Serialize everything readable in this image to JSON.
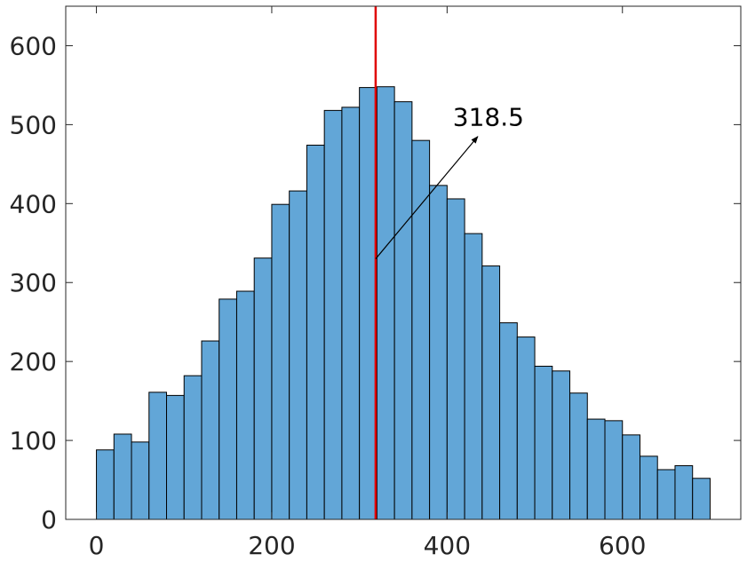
{
  "chart_data": {
    "type": "bar",
    "subtype": "histogram",
    "title": "",
    "xlabel": "",
    "ylabel": "",
    "xlim": [
      -35,
      735
    ],
    "ylim": [
      0,
      650
    ],
    "x_ticks": [
      0,
      200,
      400,
      600
    ],
    "x_tick_labels": [
      "0",
      "200",
      "400",
      "600"
    ],
    "y_ticks": [
      0,
      100,
      200,
      300,
      400,
      500,
      600
    ],
    "y_tick_labels": [
      "0",
      "100",
      "200",
      "300",
      "400",
      "500",
      "600"
    ],
    "bin_width": 20,
    "bin_edges": [
      0,
      20,
      40,
      60,
      80,
      100,
      120,
      140,
      160,
      180,
      200,
      220,
      240,
      260,
      280,
      300,
      320,
      340,
      360,
      380,
      400,
      420,
      440,
      460,
      480,
      500,
      520,
      540,
      560,
      580,
      600,
      620,
      640,
      660,
      680,
      700
    ],
    "values": [
      88,
      108,
      98,
      161,
      157,
      182,
      226,
      279,
      289,
      331,
      399,
      416,
      474,
      518,
      522,
      547,
      548,
      529,
      480,
      423,
      406,
      362,
      321,
      249,
      231,
      194,
      188,
      160,
      127,
      125,
      107,
      80,
      63,
      68,
      52
    ],
    "bar_color": "#62a6d7",
    "bar_edge_color": "#000000",
    "grid": false,
    "legend": "none",
    "reference_line": {
      "x": 318.5,
      "color": "#e00000"
    },
    "annotation": {
      "text": "318.5",
      "arrow_from": [
        318.5,
        330
      ],
      "arrow_to": [
        435,
        485
      ]
    }
  }
}
